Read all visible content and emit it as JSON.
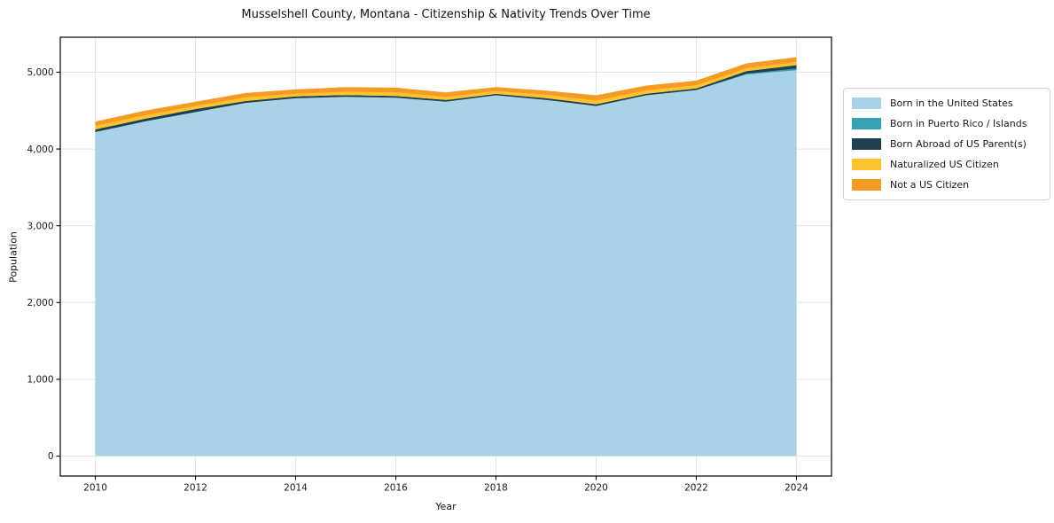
{
  "figure": {
    "title": "Musselshell County, Montana - Citizenship & Nativity Trends Over Time",
    "xlabel": "Year",
    "ylabel": "Population"
  },
  "chart_data": {
    "type": "area",
    "stacked": true,
    "title": "Musselshell County, Montana - Citizenship & Nativity Trends Over Time",
    "xlabel": "Year",
    "ylabel": "Population",
    "grid": true,
    "legend_position": "right-outside",
    "x": [
      2010,
      2011,
      2012,
      2013,
      2014,
      2015,
      2016,
      2017,
      2018,
      2019,
      2020,
      2021,
      2022,
      2023,
      2024
    ],
    "x_ticks": [
      2010,
      2012,
      2014,
      2016,
      2018,
      2020,
      2022,
      2024
    ],
    "y_ticks": [
      0,
      1000,
      2000,
      3000,
      4000,
      5000
    ],
    "ylim": [
      0,
      5000
    ],
    "series": [
      {
        "name": "Born in the United States",
        "color": "#a8d3e7",
        "values": [
          4220,
          4360,
          4480,
          4600,
          4660,
          4680,
          4668,
          4615,
          4700,
          4640,
          4560,
          4700,
          4768,
          4970,
          5025
        ]
      },
      {
        "name": "Born in Puerto Rico / Islands",
        "color": "#35a2b5",
        "values": [
          0,
          0,
          0,
          0,
          0,
          0,
          0,
          0,
          0,
          0,
          0,
          0,
          0,
          10,
          22
        ]
      },
      {
        "name": "Born Abroad of US Parent(s)",
        "color": "#1e4050",
        "values": [
          35,
          35,
          40,
          25,
          24,
          23,
          23,
          23,
          18,
          23,
          23,
          20,
          20,
          35,
          45
        ]
      },
      {
        "name": "Naturalized US Citizen",
        "color": "#fcc32d",
        "values": [
          45,
          45,
          38,
          46,
          34,
          42,
          47,
          38,
          36,
          42,
          46,
          42,
          42,
          35,
          40
        ]
      },
      {
        "name": "Not a US Citizen",
        "color": "#f59a22",
        "values": [
          58,
          60,
          58,
          58,
          58,
          62,
          61,
          62,
          52,
          55,
          70,
          64,
          61,
          65,
          64
        ]
      }
    ],
    "totals": [
      4358,
      4500,
      4616,
      4729,
      4776,
      4807,
      4799,
      4738,
      4806,
      4760,
      4699,
      4826,
      4891,
      5115,
      5196
    ]
  }
}
